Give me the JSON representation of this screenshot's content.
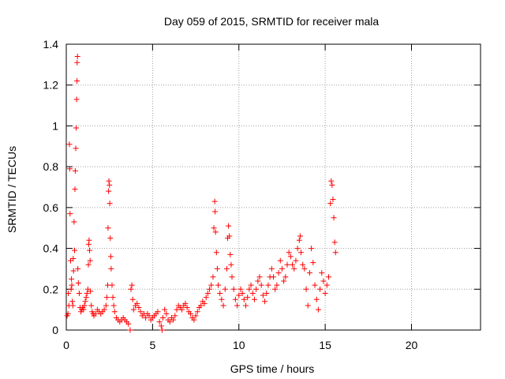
{
  "chart_data": {
    "type": "scatter",
    "title": "Day 059 of 2015, SRMTID for receiver mala",
    "xlabel": "GPS time / hours",
    "ylabel": "SRMTID / TECUs",
    "xlim": [
      0,
      24
    ],
    "ylim": [
      0,
      1.4
    ],
    "xticks": [
      0,
      5,
      10,
      15,
      20
    ],
    "xtick_labels": [
      "0",
      "5",
      "10",
      "15",
      "20"
    ],
    "yticks": [
      0,
      0.2,
      0.4,
      0.6,
      0.8,
      1,
      1.2,
      1.4
    ],
    "ytick_labels": [
      "0",
      "0.2",
      "0.4",
      "0.6",
      "0.8",
      "1",
      "1.2",
      "1.4"
    ],
    "grid": true,
    "marker": "+",
    "series": [
      {
        "name": "SRMTID",
        "color": "#ff0000",
        "points": [
          [
            0.05,
            0.07
          ],
          [
            0.1,
            0.08
          ],
          [
            0.12,
            0.18
          ],
          [
            0.15,
            0.12
          ],
          [
            0.18,
            0.91
          ],
          [
            0.2,
            0.79
          ],
          [
            0.22,
            0.57
          ],
          [
            0.25,
            0.34
          ],
          [
            0.28,
            0.2
          ],
          [
            0.3,
            0.25
          ],
          [
            0.32,
            0.22
          ],
          [
            0.35,
            0.14
          ],
          [
            0.38,
            0.12
          ],
          [
            0.4,
            0.35
          ],
          [
            0.42,
            0.29
          ],
          [
            0.45,
            0.53
          ],
          [
            0.48,
            0.39
          ],
          [
            0.5,
            0.69
          ],
          [
            0.52,
            0.78
          ],
          [
            0.55,
            0.89
          ],
          [
            0.57,
            0.99
          ],
          [
            0.6,
            1.13
          ],
          [
            0.62,
            1.22
          ],
          [
            0.63,
            1.31
          ],
          [
            0.65,
            1.34
          ],
          [
            0.67,
            0.3
          ],
          [
            0.7,
            0.23
          ],
          [
            0.75,
            0.18
          ],
          [
            0.8,
            0.11
          ],
          [
            0.85,
            0.09
          ],
          [
            0.9,
            0.1
          ],
          [
            0.95,
            0.11
          ],
          [
            1.0,
            0.1
          ],
          [
            1.05,
            0.12
          ],
          [
            1.1,
            0.14
          ],
          [
            1.15,
            0.16
          ],
          [
            1.2,
            0.18
          ],
          [
            1.25,
            0.2
          ],
          [
            1.28,
            0.32
          ],
          [
            1.3,
            0.42
          ],
          [
            1.32,
            0.44
          ],
          [
            1.35,
            0.39
          ],
          [
            1.38,
            0.34
          ],
          [
            1.4,
            0.19
          ],
          [
            1.45,
            0.12
          ],
          [
            1.5,
            0.09
          ],
          [
            1.55,
            0.08
          ],
          [
            1.6,
            0.07
          ],
          [
            1.7,
            0.08
          ],
          [
            1.8,
            0.1
          ],
          [
            1.9,
            0.09
          ],
          [
            2.0,
            0.08
          ],
          [
            2.1,
            0.09
          ],
          [
            2.2,
            0.1
          ],
          [
            2.3,
            0.12
          ],
          [
            2.35,
            0.16
          ],
          [
            2.4,
            0.22
          ],
          [
            2.42,
            0.5
          ],
          [
            2.45,
            0.68
          ],
          [
            2.47,
            0.73
          ],
          [
            2.5,
            0.71
          ],
          [
            2.52,
            0.62
          ],
          [
            2.55,
            0.45
          ],
          [
            2.58,
            0.36
          ],
          [
            2.6,
            0.3
          ],
          [
            2.65,
            0.22
          ],
          [
            2.7,
            0.16
          ],
          [
            2.75,
            0.12
          ],
          [
            2.8,
            0.09
          ],
          [
            2.9,
            0.06
          ],
          [
            3.0,
            0.05
          ],
          [
            3.1,
            0.04
          ],
          [
            3.2,
            0.05
          ],
          [
            3.3,
            0.06
          ],
          [
            3.4,
            0.05
          ],
          [
            3.5,
            0.04
          ],
          [
            3.6,
            0.03
          ],
          [
            3.7,
            0.0
          ],
          [
            3.75,
            0.2
          ],
          [
            3.8,
            0.22
          ],
          [
            3.85,
            0.15
          ],
          [
            3.9,
            0.1
          ],
          [
            4.0,
            0.12
          ],
          [
            4.1,
            0.13
          ],
          [
            4.2,
            0.11
          ],
          [
            4.3,
            0.09
          ],
          [
            4.4,
            0.07
          ],
          [
            4.5,
            0.08
          ],
          [
            4.6,
            0.06
          ],
          [
            4.7,
            0.08
          ],
          [
            4.8,
            0.07
          ],
          [
            4.9,
            0.05
          ],
          [
            5.0,
            0.06
          ],
          [
            5.1,
            0.07
          ],
          [
            5.2,
            0.08
          ],
          [
            5.3,
            0.09
          ],
          [
            5.4,
            0.04
          ],
          [
            5.5,
            0.02
          ],
          [
            5.55,
            0.0
          ],
          [
            5.6,
            0.06
          ],
          [
            5.7,
            0.1
          ],
          [
            5.8,
            0.08
          ],
          [
            5.9,
            0.05
          ],
          [
            6.0,
            0.04
          ],
          [
            6.1,
            0.06
          ],
          [
            6.2,
            0.05
          ],
          [
            6.3,
            0.07
          ],
          [
            6.4,
            0.1
          ],
          [
            6.5,
            0.12
          ],
          [
            6.6,
            0.11
          ],
          [
            6.7,
            0.1
          ],
          [
            6.8,
            0.12
          ],
          [
            6.9,
            0.13
          ],
          [
            7.0,
            0.11
          ],
          [
            7.1,
            0.09
          ],
          [
            7.2,
            0.08
          ],
          [
            7.3,
            0.06
          ],
          [
            7.4,
            0.05
          ],
          [
            7.5,
            0.07
          ],
          [
            7.6,
            0.09
          ],
          [
            7.7,
            0.11
          ],
          [
            7.8,
            0.12
          ],
          [
            7.9,
            0.14
          ],
          [
            8.0,
            0.13
          ],
          [
            8.1,
            0.16
          ],
          [
            8.2,
            0.18
          ],
          [
            8.3,
            0.2
          ],
          [
            8.4,
            0.22
          ],
          [
            8.5,
            0.26
          ],
          [
            8.55,
            0.5
          ],
          [
            8.6,
            0.63
          ],
          [
            8.62,
            0.58
          ],
          [
            8.65,
            0.48
          ],
          [
            8.7,
            0.38
          ],
          [
            8.75,
            0.3
          ],
          [
            8.8,
            0.22
          ],
          [
            8.9,
            0.18
          ],
          [
            9.0,
            0.15
          ],
          [
            9.1,
            0.12
          ],
          [
            9.2,
            0.2
          ],
          [
            9.3,
            0.3
          ],
          [
            9.35,
            0.45
          ],
          [
            9.4,
            0.51
          ],
          [
            9.45,
            0.46
          ],
          [
            9.5,
            0.37
          ],
          [
            9.55,
            0.32
          ],
          [
            9.6,
            0.26
          ],
          [
            9.7,
            0.2
          ],
          [
            9.8,
            0.15
          ],
          [
            9.9,
            0.12
          ],
          [
            10.0,
            0.17
          ],
          [
            10.1,
            0.2
          ],
          [
            10.2,
            0.18
          ],
          [
            10.3,
            0.15
          ],
          [
            10.4,
            0.12
          ],
          [
            10.5,
            0.16
          ],
          [
            10.6,
            0.2
          ],
          [
            10.7,
            0.22
          ],
          [
            10.8,
            0.18
          ],
          [
            10.9,
            0.15
          ],
          [
            11.0,
            0.2
          ],
          [
            11.1,
            0.24
          ],
          [
            11.2,
            0.26
          ],
          [
            11.3,
            0.22
          ],
          [
            11.4,
            0.17
          ],
          [
            11.5,
            0.14
          ],
          [
            11.6,
            0.18
          ],
          [
            11.7,
            0.22
          ],
          [
            11.8,
            0.26
          ],
          [
            11.9,
            0.3
          ],
          [
            12.0,
            0.26
          ],
          [
            12.1,
            0.2
          ],
          [
            12.2,
            0.22
          ],
          [
            12.3,
            0.28
          ],
          [
            12.4,
            0.34
          ],
          [
            12.5,
            0.3
          ],
          [
            12.6,
            0.24
          ],
          [
            12.7,
            0.26
          ],
          [
            12.8,
            0.32
          ],
          [
            12.9,
            0.38
          ],
          [
            13.0,
            0.36
          ],
          [
            13.1,
            0.32
          ],
          [
            13.2,
            0.3
          ],
          [
            13.3,
            0.34
          ],
          [
            13.4,
            0.4
          ],
          [
            13.5,
            0.44
          ],
          [
            13.55,
            0.46
          ],
          [
            13.6,
            0.38
          ],
          [
            13.7,
            0.32
          ],
          [
            13.8,
            0.3
          ],
          [
            13.9,
            0.2
          ],
          [
            14.0,
            0.12
          ],
          [
            14.1,
            0.28
          ],
          [
            14.2,
            0.4
          ],
          [
            14.3,
            0.33
          ],
          [
            14.4,
            0.22
          ],
          [
            14.5,
            0.15
          ],
          [
            14.6,
            0.1
          ],
          [
            14.7,
            0.2
          ],
          [
            14.8,
            0.28
          ],
          [
            14.9,
            0.24
          ],
          [
            15.0,
            0.18
          ],
          [
            15.1,
            0.22
          ],
          [
            15.2,
            0.26
          ],
          [
            15.3,
            0.62
          ],
          [
            15.35,
            0.73
          ],
          [
            15.4,
            0.71
          ],
          [
            15.45,
            0.64
          ],
          [
            15.5,
            0.55
          ],
          [
            15.55,
            0.43
          ],
          [
            15.6,
            0.38
          ]
        ]
      }
    ]
  }
}
